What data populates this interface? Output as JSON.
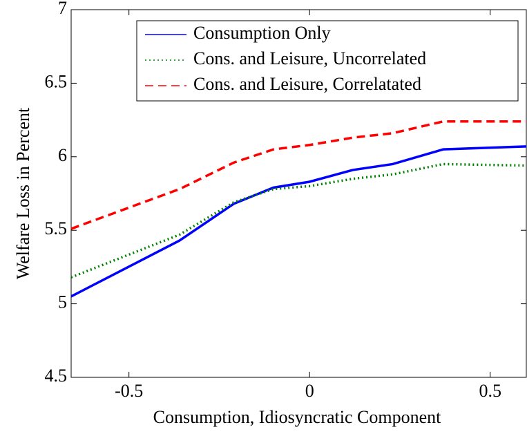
{
  "chart_data": {
    "type": "line",
    "x_label": "Consumption, Idiosyncratic Component",
    "y_label": "Welfare Loss in Percent",
    "x": [
      -0.66,
      -0.36,
      -0.21,
      -0.1,
      0,
      0.12,
      0.23,
      0.37,
      0.6
    ],
    "series": [
      {
        "name": "Consumption Only",
        "color": "#0000ff",
        "dash": "solid",
        "values": [
          5.05,
          5.43,
          5.68,
          5.79,
          5.83,
          5.91,
          5.95,
          6.05,
          6.07
        ]
      },
      {
        "name": "Cons. and Leisure, Uncorrelated",
        "color": "#008000",
        "dash": "dotted",
        "values": [
          5.18,
          5.47,
          5.69,
          5.78,
          5.8,
          5.85,
          5.88,
          5.95,
          5.94
        ]
      },
      {
        "name": "Cons. and Leisure, Correlatated",
        "color": "#ff0000",
        "dash": "dashed",
        "values": [
          5.51,
          5.78,
          5.96,
          6.05,
          6.08,
          6.13,
          6.16,
          6.24,
          6.24
        ]
      }
    ],
    "xlim": [
      -0.66,
      0.6
    ],
    "xticks": [
      -0.5,
      0,
      0.5
    ],
    "ylim": [
      4.5,
      7
    ],
    "yticks": [
      4.5,
      5,
      5.5,
      6,
      6.5,
      7
    ],
    "grid": false,
    "legend": "upper right"
  }
}
